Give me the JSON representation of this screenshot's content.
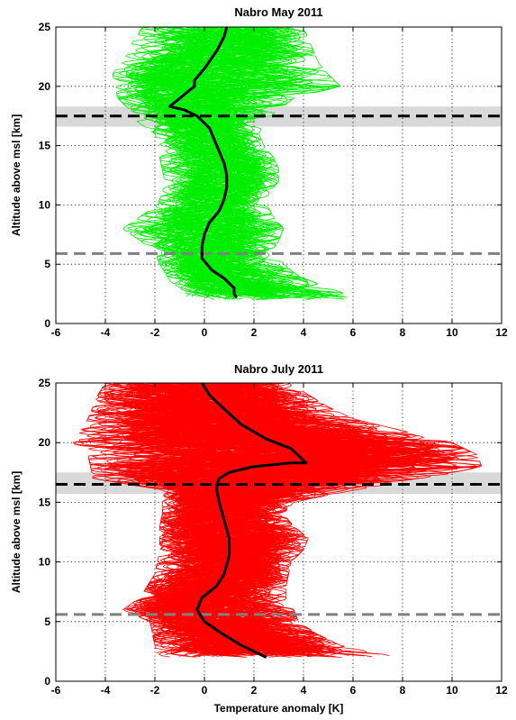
{
  "chart_data": [
    {
      "type": "line",
      "title": "Nabro May 2011",
      "xlabel": "",
      "ylabel": "Altitude above msl [km]",
      "xlim": [
        -6,
        12
      ],
      "ylim": [
        0,
        25
      ],
      "xticks": [
        -6,
        -4,
        -2,
        0,
        2,
        4,
        6,
        8,
        10,
        12
      ],
      "yticks": [
        0,
        5,
        10,
        15,
        20,
        25
      ],
      "grid": true,
      "profile_color": "#00ee00",
      "mean_color": "#000000",
      "profile_count_visible_approx": 120,
      "profile_envelope": {
        "altitude": [
          2,
          3,
          4,
          5,
          6,
          7,
          8,
          9,
          10,
          11,
          12,
          13,
          14,
          15,
          16,
          17,
          18,
          19,
          20,
          21,
          22,
          23,
          24,
          25
        ],
        "min": [
          -0.8,
          -1.2,
          -1.5,
          -1.8,
          -2.0,
          -2.6,
          -3.3,
          -2.6,
          -1.9,
          -1.7,
          -1.6,
          -1.7,
          -1.8,
          -1.8,
          -2.0,
          -2.7,
          -3.0,
          -3.5,
          -3.6,
          -3.7,
          -3.4,
          -3.1,
          -2.8,
          -2.5
        ],
        "max": [
          6.4,
          5.0,
          3.8,
          3.2,
          3.0,
          3.0,
          3.2,
          2.8,
          2.5,
          2.6,
          3.0,
          3.0,
          2.8,
          2.4,
          2.2,
          2.4,
          3.0,
          3.6,
          5.5,
          5.0,
          4.6,
          4.4,
          4.2,
          4.0
        ]
      },
      "mean_profile": {
        "name": "",
        "x": [
          1.3,
          1.2,
          1.2,
          0.8,
          0.3,
          -0.1,
          -0.1,
          0.0,
          0.2,
          0.6,
          0.8,
          0.9,
          0.9,
          0.8,
          0.6,
          0.4,
          0.2,
          -0.3,
          -0.8,
          -1.4,
          -0.7,
          -0.4,
          -0.4,
          0.0,
          0.5,
          0.8,
          0.9
        ],
        "y": [
          2.2,
          2.5,
          3.0,
          3.8,
          4.5,
          5.5,
          6.5,
          7.5,
          8.5,
          9.5,
          10.5,
          11.5,
          12.5,
          13.5,
          14.5,
          15.5,
          16.5,
          17.5,
          18.0,
          18.3,
          19.5,
          20.0,
          20.5,
          21.5,
          23.0,
          24.2,
          25.0
        ]
      },
      "reference_lines": [
        {
          "style": "dashed",
          "color": "#000000",
          "y": 17.5,
          "band": [
            16.6,
            18.3
          ],
          "band_color": "#d9d9d9"
        },
        {
          "style": "dashed",
          "color": "#808080",
          "y": 5.9
        }
      ]
    },
    {
      "type": "line",
      "title": "Nabro July 2011",
      "xlabel": "Temperature anomaly [K]",
      "ylabel": "Altitude above msl [km]",
      "xlim": [
        -6,
        12
      ],
      "ylim": [
        0,
        25
      ],
      "xticks": [
        -6,
        -4,
        -2,
        0,
        2,
        4,
        6,
        8,
        10,
        12
      ],
      "yticks": [
        0,
        5,
        10,
        15,
        20,
        25
      ],
      "grid": true,
      "profile_color": "#ff0000",
      "mean_color": "#000000",
      "profile_count_visible_approx": 200,
      "profile_envelope": {
        "altitude": [
          2,
          3,
          4,
          5,
          6,
          7,
          8,
          9,
          10,
          11,
          12,
          13,
          14,
          15,
          16,
          17,
          18,
          19,
          20,
          21,
          22,
          23,
          24,
          25
        ],
        "min": [
          -1.9,
          -2.0,
          -2.1,
          -2.2,
          -3.3,
          -2.6,
          -2.3,
          -2.0,
          -1.9,
          -1.8,
          -1.8,
          -1.8,
          -1.7,
          -1.7,
          -1.6,
          -4.5,
          -4.6,
          -4.7,
          -5.3,
          -5.0,
          -4.7,
          -4.5,
          -4.3,
          -4.0
        ],
        "max": [
          7.8,
          5.5,
          4.5,
          3.8,
          3.6,
          3.3,
          3.3,
          3.4,
          3.5,
          4.0,
          4.2,
          3.6,
          3.2,
          3.6,
          6.0,
          9.0,
          11.2,
          11.0,
          10.0,
          8.0,
          6.0,
          5.0,
          4.2,
          3.5
        ]
      },
      "mean_profile": {
        "name": "",
        "x": [
          2.5,
          1.5,
          0.7,
          0.0,
          -0.3,
          -0.1,
          0.5,
          0.8,
          1.0,
          1.0,
          0.8,
          0.6,
          0.5,
          0.5,
          0.6,
          1.0,
          2.0,
          3.5,
          4.1,
          3.5,
          2.5,
          1.5,
          0.7,
          0.2,
          -0.1
        ],
        "y": [
          2.0,
          3.0,
          4.0,
          5.0,
          6.0,
          7.0,
          8.0,
          9.0,
          10.5,
          12.0,
          13.5,
          15.0,
          16.0,
          16.5,
          17.0,
          17.5,
          18.0,
          18.3,
          18.3,
          19.5,
          20.3,
          21.5,
          23.0,
          24.0,
          25.0
        ]
      },
      "reference_lines": [
        {
          "style": "dashed",
          "color": "#000000",
          "y": 16.5,
          "band": [
            15.7,
            17.5
          ],
          "band_color": "#d9d9d9"
        },
        {
          "style": "dashed",
          "color": "#808080",
          "y": 5.6
        }
      ]
    }
  ]
}
